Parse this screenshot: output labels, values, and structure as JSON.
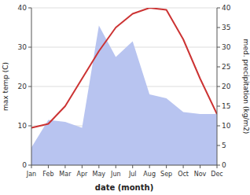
{
  "chart_data": {
    "type": "line",
    "xlabel": "date (month)",
    "ylabel": "max temp (C)",
    "y2label": "med. precipitation (kg/m2)",
    "categories": [
      "Jan",
      "Feb",
      "Mar",
      "Apr",
      "May",
      "Jun",
      "Jul",
      "Aug",
      "Sep",
      "Oct",
      "Nov",
      "Dec"
    ],
    "series": [
      {
        "type": "area",
        "axis": "y2",
        "color": "#b8c4f0",
        "values": [
          4.5,
          11.5,
          11.0,
          9.5,
          35.5,
          27.5,
          31.5,
          18.0,
          17.0,
          13.5,
          13.0,
          13.0
        ]
      },
      {
        "type": "line",
        "color": "#cc3333",
        "values": [
          9.5,
          10.5,
          15.0,
          22.0,
          29.0,
          35.0,
          38.5,
          40.0,
          39.5,
          32.0,
          22.0,
          13.0
        ]
      }
    ],
    "ylim": [
      0,
      40
    ],
    "yticks": [
      0,
      10,
      20,
      30,
      40
    ],
    "y2lim": [
      0,
      40
    ],
    "y2ticks": [
      0,
      5,
      10,
      15,
      20,
      25,
      30,
      35,
      40
    ],
    "grid": true
  }
}
